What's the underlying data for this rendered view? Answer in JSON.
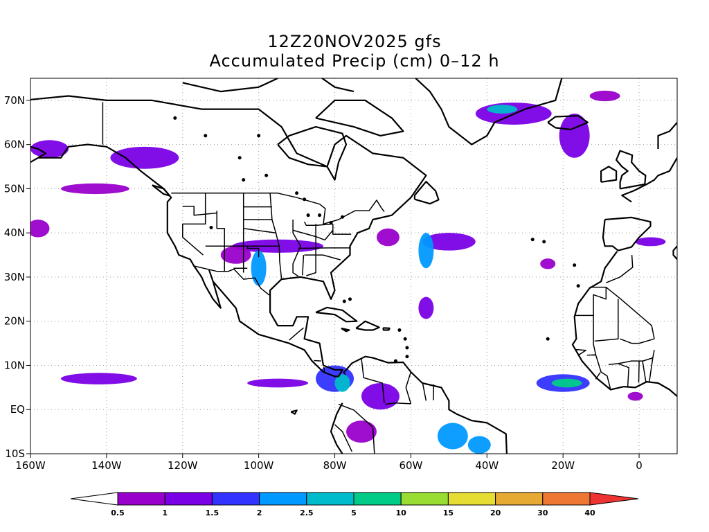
{
  "title": {
    "line1": "12Z20NOV2025 gfs",
    "line2": "Accumulated Precip (cm) 0–12 h"
  },
  "map": {
    "lon_range": [
      -160,
      10
    ],
    "lat_range": [
      -10,
      75
    ],
    "lon_ticks": [
      {
        "value": -160,
        "label": "160W"
      },
      {
        "value": -140,
        "label": "140W"
      },
      {
        "value": -120,
        "label": "120W"
      },
      {
        "value": -100,
        "label": "100W"
      },
      {
        "value": -80,
        "label": "80W"
      },
      {
        "value": -60,
        "label": "60W"
      },
      {
        "value": -40,
        "label": "40W"
      },
      {
        "value": -20,
        "label": "20W"
      },
      {
        "value": 0,
        "label": "0"
      }
    ],
    "lat_ticks": [
      {
        "value": 70,
        "label": "70N"
      },
      {
        "value": 60,
        "label": "60N"
      },
      {
        "value": 50,
        "label": "50N"
      },
      {
        "value": 40,
        "label": "40N"
      },
      {
        "value": 30,
        "label": "30N"
      },
      {
        "value": 20,
        "label": "20N"
      },
      {
        "value": 10,
        "label": "10N"
      },
      {
        "value": 0,
        "label": "EQ"
      },
      {
        "value": -10,
        "label": "10S"
      }
    ],
    "grid": "dotted"
  },
  "colorbar": {
    "colors": [
      "#ffffff",
      "#9a00cc",
      "#7a00e6",
      "#3333ff",
      "#0099ff",
      "#00bbcc",
      "#00cc88",
      "#99dd33",
      "#e6dd33",
      "#e6aa33",
      "#ee7733",
      "#ee3333"
    ],
    "labels": [
      "0.5",
      "1",
      "1.5",
      "2",
      "2.5",
      "5",
      "10",
      "15",
      "20",
      "30",
      "40"
    ]
  },
  "precip_areas": [
    {
      "lon": -155,
      "lat": 59,
      "rx": 5,
      "ry": 2,
      "level": 1
    },
    {
      "lon": -130,
      "lat": 57,
      "rx": 9,
      "ry": 2.5,
      "level": 1
    },
    {
      "lon": -143,
      "lat": 50,
      "rx": 9,
      "ry": 1.2,
      "level": 0
    },
    {
      "lon": -158,
      "lat": 41,
      "rx": 3,
      "ry": 2,
      "level": 0
    },
    {
      "lon": -95,
      "lat": 37,
      "rx": 12,
      "ry": 1.5,
      "level": 1
    },
    {
      "lon": -100,
      "lat": 32,
      "rx": 2,
      "ry": 4,
      "level": 3
    },
    {
      "lon": -106,
      "lat": 35,
      "rx": 4,
      "ry": 2,
      "level": 0
    },
    {
      "lon": -66,
      "lat": 39,
      "rx": 3,
      "ry": 2,
      "level": 0
    },
    {
      "lon": -50,
      "lat": 38,
      "rx": 7,
      "ry": 2,
      "level": 1
    },
    {
      "lon": -56,
      "lat": 36,
      "rx": 2,
      "ry": 4,
      "level": 3
    },
    {
      "lon": -56,
      "lat": 23,
      "rx": 2,
      "ry": 2.5,
      "level": 1
    },
    {
      "lon": -33,
      "lat": 67,
      "rx": 10,
      "ry": 2.5,
      "level": 1
    },
    {
      "lon": -36,
      "lat": 68,
      "rx": 4,
      "ry": 1,
      "level": 4
    },
    {
      "lon": -17,
      "lat": 62,
      "rx": 4,
      "ry": 5,
      "level": 1
    },
    {
      "lon": -9,
      "lat": 71,
      "rx": 4,
      "ry": 1.2,
      "level": 0
    },
    {
      "lon": -142,
      "lat": 7,
      "rx": 10,
      "ry": 1.3,
      "level": 1
    },
    {
      "lon": -95,
      "lat": 6,
      "rx": 8,
      "ry": 1,
      "level": 1
    },
    {
      "lon": -80,
      "lat": 7,
      "rx": 5,
      "ry": 3,
      "level": 2
    },
    {
      "lon": -78,
      "lat": 6,
      "rx": 2,
      "ry": 2,
      "level": 4
    },
    {
      "lon": -20,
      "lat": 6,
      "rx": 7,
      "ry": 2,
      "level": 2
    },
    {
      "lon": -19,
      "lat": 6,
      "rx": 4,
      "ry": 1,
      "level": 5
    },
    {
      "lon": -49,
      "lat": -6,
      "rx": 4,
      "ry": 3,
      "level": 3
    },
    {
      "lon": -42,
      "lat": -8,
      "rx": 3,
      "ry": 2,
      "level": 3
    },
    {
      "lon": -68,
      "lat": 3,
      "rx": 5,
      "ry": 3,
      "level": 1
    },
    {
      "lon": -73,
      "lat": -5,
      "rx": 4,
      "ry": 2.5,
      "level": 0
    },
    {
      "lon": -24,
      "lat": 33,
      "rx": 2,
      "ry": 1.2,
      "level": 0
    },
    {
      "lon": 3,
      "lat": 38,
      "rx": 4,
      "ry": 1,
      "level": 1
    },
    {
      "lon": -1,
      "lat": 3,
      "rx": 2,
      "ry": 1,
      "level": 0
    }
  ]
}
